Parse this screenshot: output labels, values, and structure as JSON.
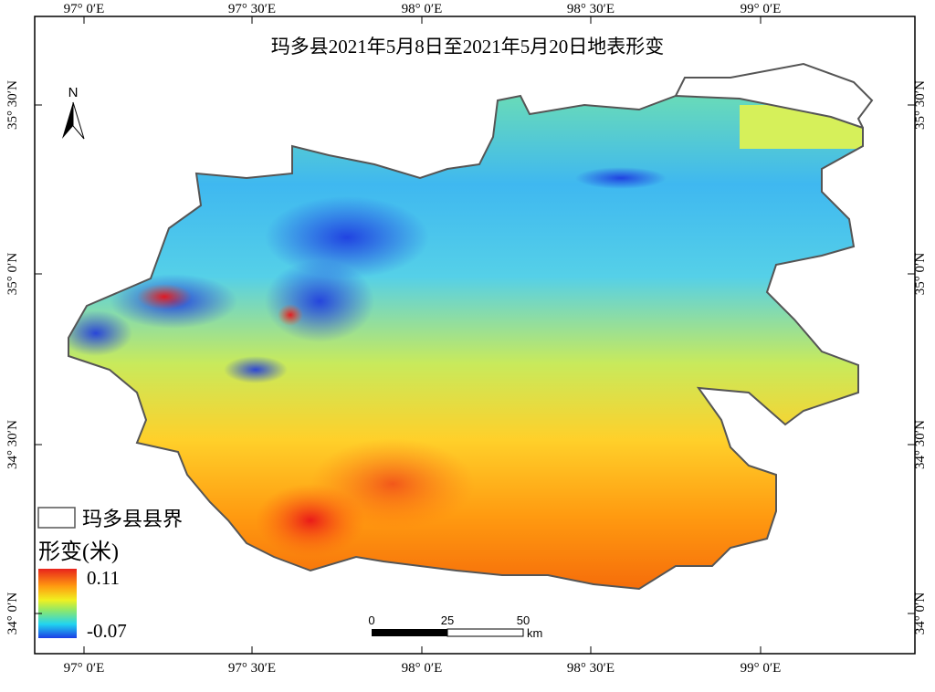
{
  "map": {
    "title": "玛多县2021年5月8日至2021年5月20日地表形变",
    "north": "N",
    "graticule": {
      "longitudes": [
        "97° 0′E",
        "97° 30′E",
        "98° 0′E",
        "98° 30′E",
        "99° 0′E"
      ],
      "latitudes": [
        "35° 30′N",
        "35° 0′N",
        "34° 30′N",
        "34° 0′N"
      ]
    },
    "legend": {
      "boundary": "玛多县县界",
      "deformation_title": "形变(米)",
      "max": 0.11,
      "min": -0.07
    },
    "scalebar": {
      "ticks": [
        0,
        25,
        50
      ],
      "unit": "km"
    }
  }
}
